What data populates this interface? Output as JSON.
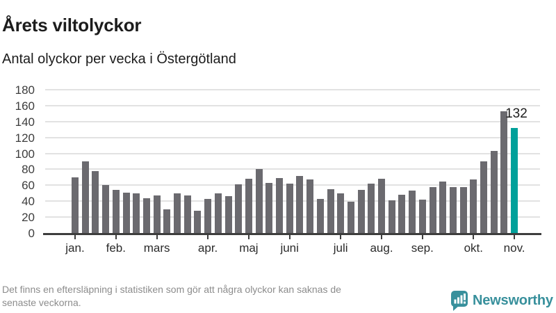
{
  "header": {
    "title": "Årets viltolyckor",
    "subtitle": "Antal olyckor per vecka i Östergötland"
  },
  "footer": {
    "lines": [
      "Det finns en eftersläpning i statistiken som gör att några olyckor kan saknas de",
      "senaste veckorna."
    ],
    "logo_text": "Newsworthy"
  },
  "colors": {
    "bar": "#6b6a6f",
    "highlight": "#00a09a",
    "gridline": "#e2e2e2",
    "axis": "#3d3d3d",
    "tick_label": "#2b2b2b",
    "y_label": "#3c3c3c",
    "annotation": "#1c1c1c",
    "logo": "#38909c"
  },
  "chart_data": {
    "type": "bar",
    "title": "Årets viltolyckor",
    "subtitle": "Antal olyckor per vecka i Östergötland",
    "xlabel": "",
    "ylabel": "Antal olyckor per vecka",
    "ylim": [
      0,
      180
    ],
    "ytick_step": 20,
    "grid": true,
    "x_unit": "vecka",
    "weeks": [
      1,
      2,
      3,
      4,
      5,
      6,
      7,
      8,
      9,
      10,
      11,
      12,
      13,
      14,
      15,
      16,
      17,
      18,
      19,
      20,
      21,
      22,
      23,
      24,
      25,
      26,
      27,
      28,
      29,
      30,
      31,
      32,
      33,
      34,
      35,
      36,
      37,
      38,
      39,
      40,
      41,
      42,
      43,
      44
    ],
    "values": [
      70,
      90,
      78,
      60,
      54,
      51,
      50,
      44,
      47,
      30,
      50,
      47,
      28,
      43,
      50,
      46,
      61,
      68,
      80,
      63,
      69,
      62,
      72,
      67,
      43,
      55,
      50,
      39,
      54,
      62,
      68,
      41,
      48,
      53,
      42,
      58,
      65,
      58,
      58,
      67,
      90,
      103,
      153,
      132
    ],
    "highlight_index": 43,
    "annotation": {
      "text": "132",
      "week": 44
    },
    "month_ticks": [
      {
        "label": "jan.",
        "week": 1
      },
      {
        "label": "feb.",
        "week": 5
      },
      {
        "label": "mars",
        "week": 9
      },
      {
        "label": "apr.",
        "week": 14
      },
      {
        "label": "maj",
        "week": 18
      },
      {
        "label": "juni",
        "week": 22
      },
      {
        "label": "juli",
        "week": 27
      },
      {
        "label": "aug.",
        "week": 31
      },
      {
        "label": "sep.",
        "week": 35
      },
      {
        "label": "okt.",
        "week": 40
      },
      {
        "label": "nov.",
        "week": 44
      }
    ]
  }
}
